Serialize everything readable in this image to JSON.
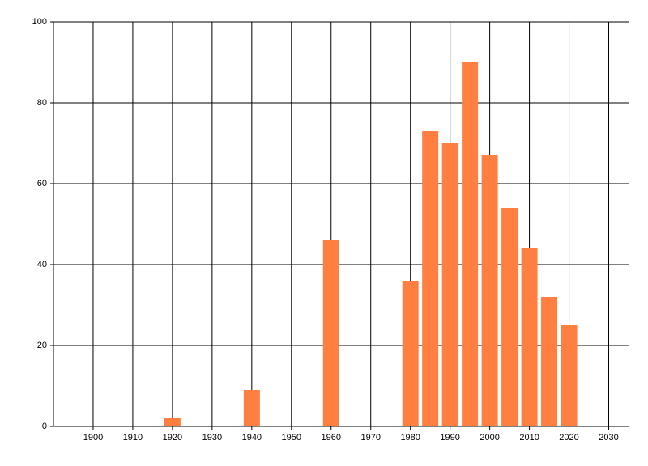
{
  "chart_data": {
    "type": "bar",
    "x": [
      1920,
      1940,
      1960,
      1980,
      1985,
      1990,
      1995,
      2000,
      2005,
      2010,
      2015,
      2020
    ],
    "values": [
      2,
      9,
      46,
      36,
      73,
      70,
      90,
      67,
      54,
      44,
      32,
      25
    ],
    "color": "#ff7f40",
    "xlim": [
      1890,
      2035
    ],
    "xticks": [
      1900,
      1910,
      1920,
      1930,
      1940,
      1950,
      1960,
      1970,
      1980,
      1990,
      2000,
      2010,
      2020,
      2030
    ],
    "ylim": [
      0,
      100
    ],
    "yticks": [
      0,
      20,
      40,
      60,
      80,
      100
    ],
    "grid": true
  }
}
